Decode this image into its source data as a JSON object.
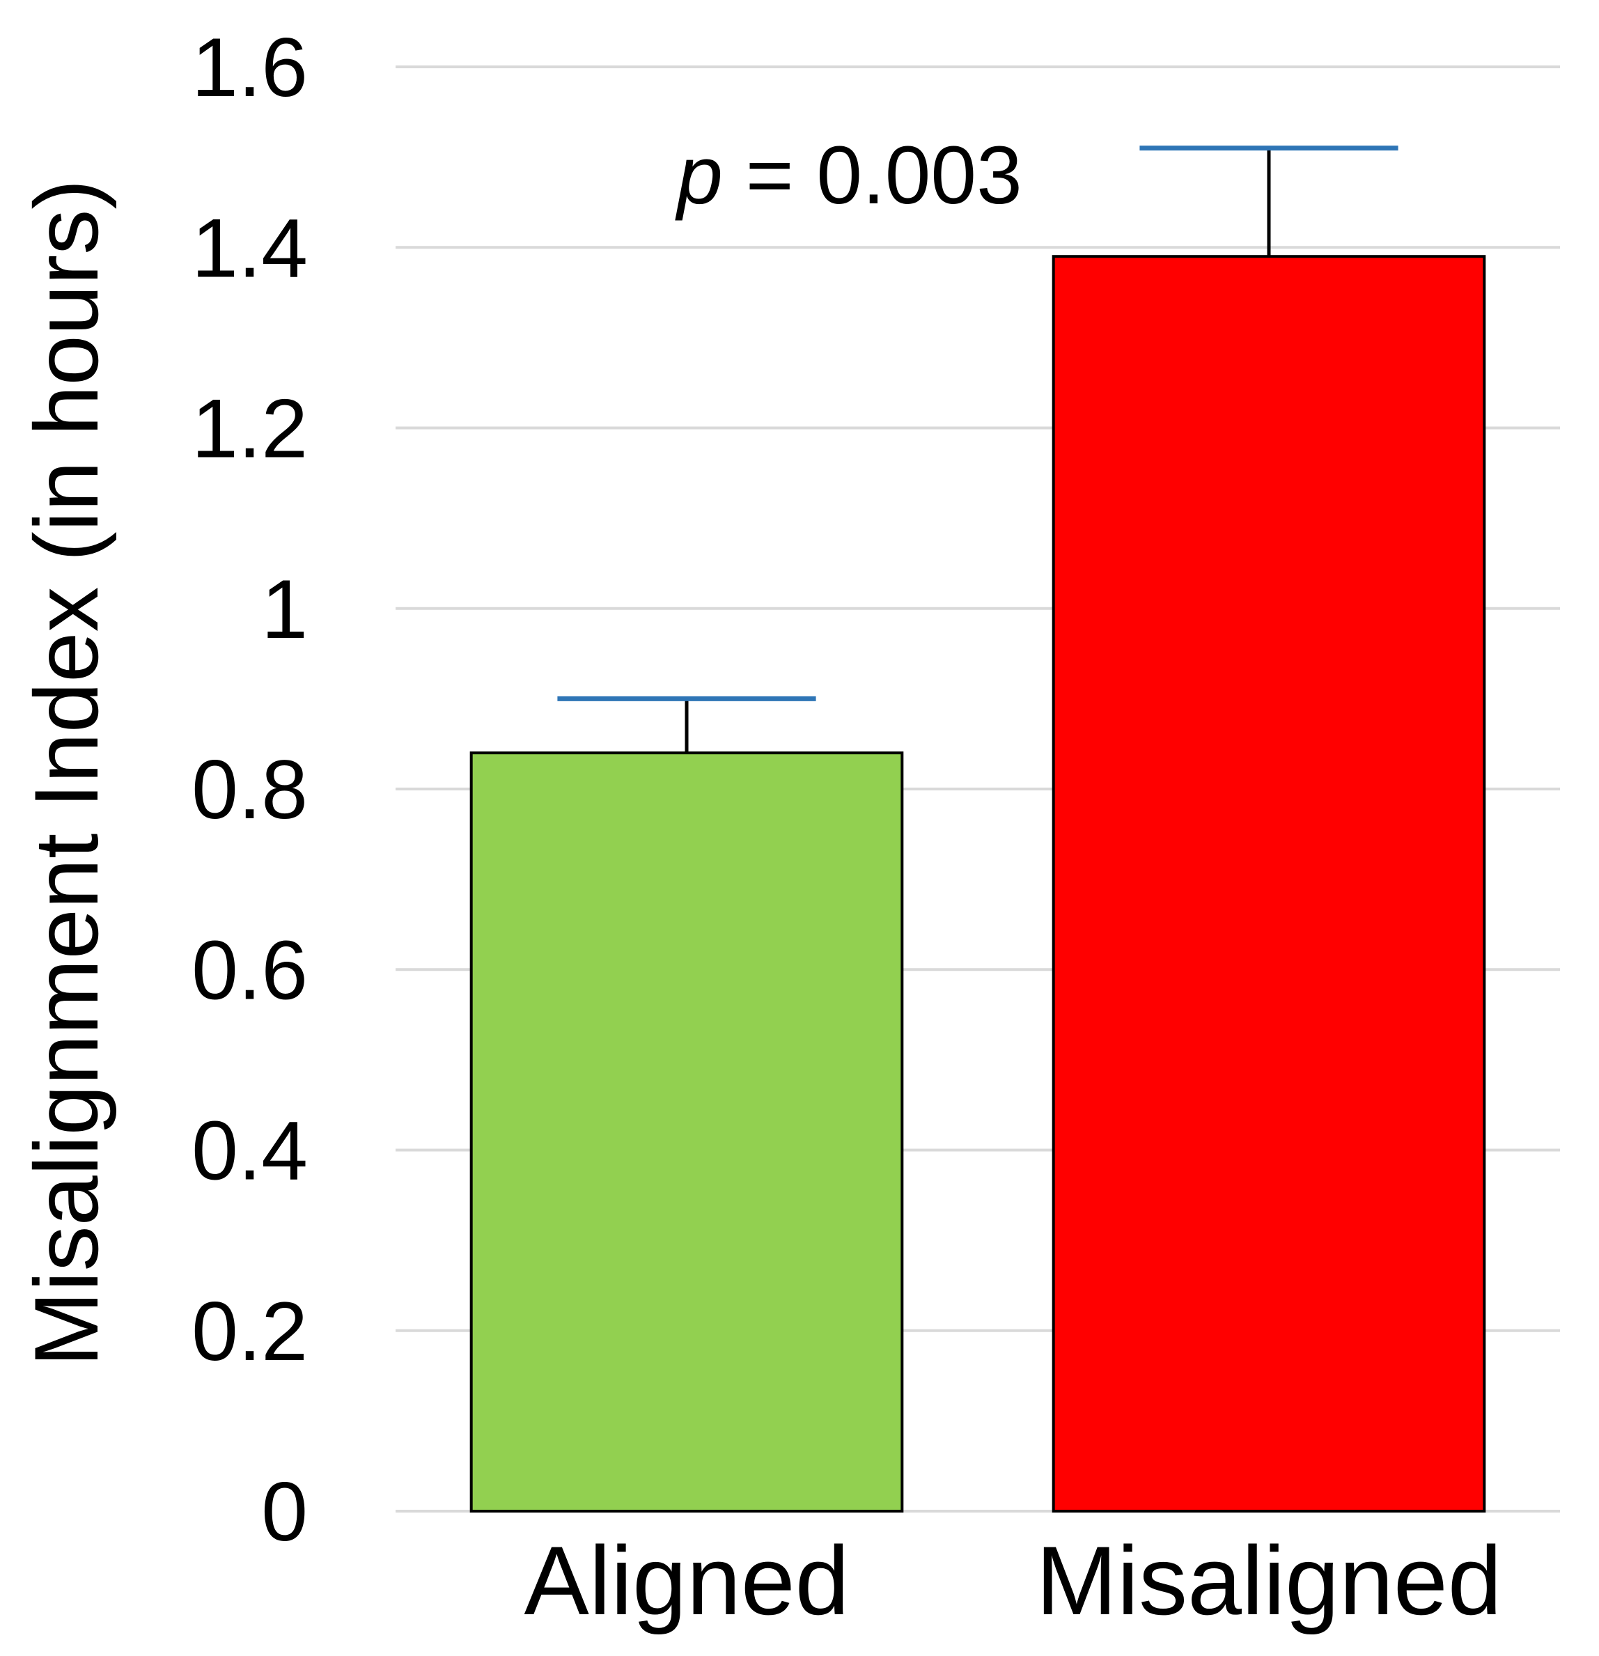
{
  "chart_data": {
    "type": "bar",
    "title": "",
    "xlabel": "",
    "ylabel": "Misalignment Index (in hours)",
    "categories": [
      "Aligned",
      "Misaligned"
    ],
    "values": [
      0.84,
      1.39
    ],
    "error_upper": [
      0.9,
      1.51
    ],
    "colors": [
      "#92d050",
      "#ff0000"
    ],
    "error_cap_color": "#2e75b6",
    "ylim": [
      0,
      1.6
    ],
    "yticks": [
      0,
      0.2,
      0.4,
      0.6,
      0.8,
      1,
      1.2,
      1.4,
      1.6
    ],
    "ytick_labels": [
      "0",
      "0.2",
      "0.4",
      "0.6",
      "0.8",
      "1",
      "1.2",
      "1.4",
      "1.6"
    ],
    "grid": true,
    "annotation": {
      "p_symbol": "p",
      "text": " = 0.003"
    }
  }
}
